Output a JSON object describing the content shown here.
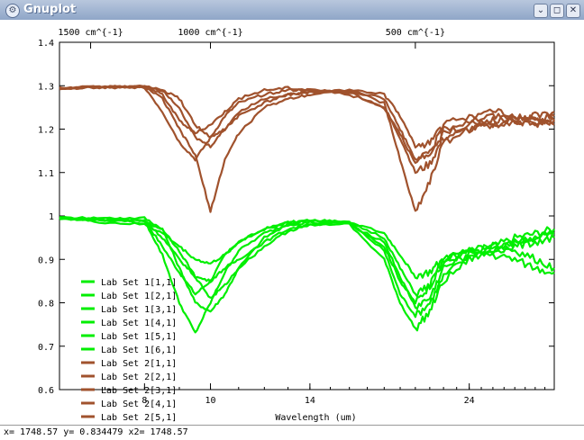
{
  "window": {
    "title": "Gnuplot",
    "buttons": [
      "chevron-down-icon",
      "restore-icon",
      "close-icon"
    ]
  },
  "status": {
    "readout": "x= 1748.57 y= 0.834479 x2= 1748.57"
  },
  "colors": {
    "set1": "#00ee00",
    "set2": "#a0522d",
    "axes": "#000000",
    "background": "#ffffff"
  },
  "chart_data": {
    "type": "line",
    "title": "",
    "xlabel": "Wavelength (um)",
    "ylabel": "",
    "ylim": [
      0.6,
      1.4
    ],
    "yticks": [
      "0.6",
      "0.7",
      "0.8",
      "0.9",
      "1",
      "1.1",
      "1.2",
      "1.3",
      "1.4"
    ],
    "xscale": "log",
    "xlim": [
      6,
      32
    ],
    "xticks": [
      "8",
      "10",
      "14",
      "24"
    ],
    "x2ticks": [
      "1500 cm^{-1}",
      "1000 cm^{-1}",
      "500 cm^{-1}"
    ],
    "grid": false,
    "legend_position": "bottom-left",
    "x": [
      6.0,
      7.0,
      8.0,
      8.5,
      9.0,
      9.5,
      10.0,
      10.5,
      11.0,
      12.0,
      13.0,
      14.0,
      16.0,
      18.0,
      19.0,
      20.0,
      21.0,
      22.0,
      24.0,
      26.0,
      28.0,
      30.0,
      32.0
    ],
    "series": [
      {
        "name": "Lab Set 1[1,1]",
        "group": 1,
        "values": [
          0.995,
          0.995,
          0.99,
          0.93,
          0.87,
          0.82,
          0.85,
          0.91,
          0.94,
          0.97,
          0.985,
          0.99,
          0.985,
          0.93,
          0.85,
          0.8,
          0.84,
          0.89,
          0.92,
          0.93,
          0.95,
          0.96,
          0.97
        ]
      },
      {
        "name": "Lab Set 1[2,1]",
        "group": 1,
        "values": [
          0.995,
          0.995,
          0.995,
          0.97,
          0.88,
          0.8,
          0.78,
          0.82,
          0.88,
          0.95,
          0.98,
          0.99,
          0.985,
          0.92,
          0.82,
          0.77,
          0.8,
          0.86,
          0.91,
          0.92,
          0.94,
          0.95,
          0.96
        ]
      },
      {
        "name": "Lab Set 1[3,1]",
        "group": 1,
        "values": [
          0.995,
          0.99,
          0.99,
          0.91,
          0.8,
          0.73,
          0.8,
          0.87,
          0.92,
          0.96,
          0.98,
          0.985,
          0.98,
          0.9,
          0.8,
          0.74,
          0.78,
          0.85,
          0.9,
          0.92,
          0.93,
          0.94,
          0.95
        ]
      },
      {
        "name": "Lab Set 1[4,1]",
        "group": 1,
        "values": [
          0.995,
          0.99,
          0.99,
          0.95,
          0.9,
          0.86,
          0.85,
          0.88,
          0.9,
          0.94,
          0.97,
          0.98,
          0.985,
          0.95,
          0.88,
          0.82,
          0.84,
          0.9,
          0.92,
          0.91,
          0.9,
          0.88,
          0.87
        ]
      },
      {
        "name": "Lab Set 1[5,1]",
        "group": 1,
        "values": [
          0.995,
          0.99,
          0.985,
          0.97,
          0.92,
          0.86,
          0.81,
          0.84,
          0.88,
          0.93,
          0.965,
          0.98,
          0.98,
          0.94,
          0.86,
          0.79,
          0.81,
          0.88,
          0.91,
          0.93,
          0.94,
          0.95,
          0.96
        ]
      },
      {
        "name": "Lab Set 1[6,1]",
        "group": 1,
        "values": [
          0.995,
          0.985,
          0.98,
          0.96,
          0.93,
          0.9,
          0.89,
          0.91,
          0.94,
          0.97,
          0.985,
          0.99,
          0.985,
          0.96,
          0.91,
          0.86,
          0.87,
          0.9,
          0.92,
          0.93,
          0.92,
          0.9,
          0.88
        ]
      },
      {
        "name": "Lab Set 2[1,1]",
        "group": 2,
        "values": [
          1.295,
          1.297,
          1.298,
          1.27,
          1.2,
          1.14,
          1.01,
          1.13,
          1.19,
          1.25,
          1.27,
          1.28,
          1.29,
          1.26,
          1.13,
          1.01,
          1.08,
          1.17,
          1.2,
          1.21,
          1.22,
          1.23,
          1.24
        ]
      },
      {
        "name": "Lab Set 2[2,1]",
        "group": 2,
        "values": [
          1.295,
          1.296,
          1.298,
          1.29,
          1.25,
          1.18,
          1.16,
          1.2,
          1.24,
          1.27,
          1.28,
          1.285,
          1.29,
          1.27,
          1.2,
          1.13,
          1.14,
          1.19,
          1.21,
          1.22,
          1.23,
          1.22,
          1.23
        ]
      },
      {
        "name": "Lab Set 2[3,1]",
        "group": 2,
        "values": [
          1.295,
          1.296,
          1.297,
          1.24,
          1.17,
          1.13,
          1.18,
          1.23,
          1.26,
          1.28,
          1.29,
          1.29,
          1.285,
          1.25,
          1.18,
          1.1,
          1.12,
          1.18,
          1.2,
          1.21,
          1.22,
          1.21,
          1.22
        ]
      },
      {
        "name": "Lab Set 2[4,1]",
        "group": 2,
        "values": [
          1.295,
          1.297,
          1.298,
          1.29,
          1.27,
          1.21,
          1.18,
          1.2,
          1.23,
          1.26,
          1.28,
          1.285,
          1.29,
          1.28,
          1.23,
          1.16,
          1.17,
          1.21,
          1.23,
          1.24,
          1.23,
          1.22,
          1.21
        ]
      },
      {
        "name": "Lab Set 2[5,1]",
        "group": 2,
        "values": [
          1.295,
          1.296,
          1.298,
          1.28,
          1.22,
          1.19,
          1.21,
          1.24,
          1.27,
          1.29,
          1.295,
          1.29,
          1.28,
          1.25,
          1.19,
          1.12,
          1.15,
          1.2,
          1.22,
          1.23,
          1.22,
          1.21,
          1.22
        ]
      }
    ]
  }
}
